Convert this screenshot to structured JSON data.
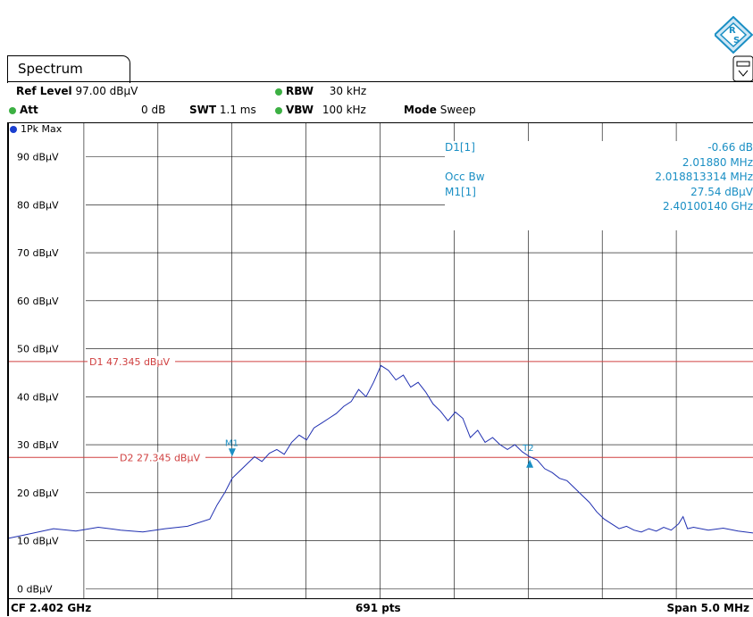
{
  "tab": {
    "label": "Spectrum"
  },
  "header": {
    "ref_level_label": "Ref Level",
    "ref_level_value": "97.00 dBµV",
    "att_label": "Att",
    "att_value": "0 dB",
    "swt_label": "SWT",
    "swt_value": "1.1 ms",
    "rbw_label": "RBW",
    "rbw_value": "30 kHz",
    "vbw_label": "VBW",
    "vbw_value": "100 kHz",
    "mode_label": "Mode",
    "mode_value": "Sweep"
  },
  "trace_label": "1Pk Max",
  "marker_table": {
    "rows": [
      {
        "label": "D1[1]",
        "value": "-0.66 dB"
      },
      {
        "label": "",
        "value": "2.01880 MHz"
      },
      {
        "label": "Occ Bw",
        "value": "2.018813314 MHz"
      },
      {
        "label": "M1[1]",
        "value": "27.54 dBµV"
      },
      {
        "label": "",
        "value": "2.40100140 GHz"
      }
    ]
  },
  "footer": {
    "cf": "CF 2.402 GHz",
    "pts": "691 pts",
    "span": "Span 5.0 MHz"
  },
  "colors": {
    "trace": "#1f2fb0",
    "limit_lines": "#d04040",
    "marker": "#1a8fc4",
    "grid": "#000000"
  },
  "chart_data": {
    "type": "line",
    "y_unit": "dBµV",
    "ylim": [
      -2,
      97
    ],
    "xlim": [
      2.3995,
      2.4045
    ],
    "y_ticks": [
      {
        "value": 90,
        "label": "90 dBµV"
      },
      {
        "value": 80,
        "label": "80 dBµV"
      },
      {
        "value": 70,
        "label": "70 dBµV"
      },
      {
        "value": 60,
        "label": "60 dBµV"
      },
      {
        "value": 50,
        "label": "50 dBµV"
      },
      {
        "value": 40,
        "label": "40 dBµV"
      },
      {
        "value": 30,
        "label": "30 dBµV"
      },
      {
        "value": 20,
        "label": "20 dBµV"
      },
      {
        "value": 10,
        "label": "10 dBµV"
      },
      {
        "value": 0,
        "label": "0 dBµV"
      }
    ],
    "grid": true,
    "reference_lines": [
      {
        "name": "D1",
        "label": "D1 47.345 dBµV",
        "value": 47.345
      },
      {
        "name": "D2",
        "label": "D2 27.345 dBµV",
        "value": 27.345
      }
    ],
    "markers": [
      {
        "label": "M1",
        "x": 2.401,
        "y": 27.54
      },
      {
        "label": "T2",
        "x": 2.403,
        "y": 26.88
      }
    ],
    "series": [
      {
        "points": [
          [
            2.3995,
            10.5
          ],
          [
            2.39965,
            11.5
          ],
          [
            2.3998,
            12.5
          ],
          [
            2.39995,
            12.0
          ],
          [
            2.4001,
            12.8
          ],
          [
            2.40025,
            12.2
          ],
          [
            2.4004,
            11.8
          ],
          [
            2.40055,
            12.5
          ],
          [
            2.4007,
            13.0
          ],
          [
            2.40085,
            14.5
          ],
          [
            2.4009,
            17.5
          ],
          [
            2.40095,
            20.0
          ],
          [
            2.401,
            23.0
          ],
          [
            2.40105,
            24.5
          ],
          [
            2.4011,
            26.0
          ],
          [
            2.40115,
            27.5
          ],
          [
            2.4012,
            26.5
          ],
          [
            2.40125,
            28.2
          ],
          [
            2.4013,
            29.0
          ],
          [
            2.40135,
            28.0
          ],
          [
            2.4014,
            30.5
          ],
          [
            2.40145,
            32.0
          ],
          [
            2.4015,
            31.0
          ],
          [
            2.40155,
            33.5
          ],
          [
            2.4016,
            34.5
          ],
          [
            2.40165,
            35.5
          ],
          [
            2.4017,
            36.5
          ],
          [
            2.40175,
            38.0
          ],
          [
            2.4018,
            39.0
          ],
          [
            2.40185,
            41.5
          ],
          [
            2.4019,
            40.0
          ],
          [
            2.40195,
            43.0
          ],
          [
            2.402,
            46.5
          ],
          [
            2.40205,
            45.5
          ],
          [
            2.4021,
            43.5
          ],
          [
            2.40215,
            44.5
          ],
          [
            2.4022,
            42.0
          ],
          [
            2.40225,
            43.0
          ],
          [
            2.4023,
            41.0
          ],
          [
            2.40235,
            38.5
          ],
          [
            2.4024,
            37.0
          ],
          [
            2.40245,
            35.0
          ],
          [
            2.4025,
            36.8
          ],
          [
            2.40255,
            35.5
          ],
          [
            2.4026,
            31.5
          ],
          [
            2.40265,
            33.0
          ],
          [
            2.4027,
            30.5
          ],
          [
            2.40275,
            31.5
          ],
          [
            2.4028,
            30.0
          ],
          [
            2.40285,
            29.0
          ],
          [
            2.4029,
            30.0
          ],
          [
            2.40295,
            28.5
          ],
          [
            2.403,
            27.5
          ],
          [
            2.40305,
            26.8
          ],
          [
            2.4031,
            25.0
          ],
          [
            2.40315,
            24.2
          ],
          [
            2.4032,
            23.0
          ],
          [
            2.40325,
            22.5
          ],
          [
            2.4033,
            21.0
          ],
          [
            2.40335,
            19.5
          ],
          [
            2.4034,
            18.0
          ],
          [
            2.40345,
            16.0
          ],
          [
            2.4035,
            14.5
          ],
          [
            2.40355,
            13.5
          ],
          [
            2.4036,
            12.5
          ],
          [
            2.40365,
            13.0
          ],
          [
            2.4037,
            12.2
          ],
          [
            2.40375,
            11.8
          ],
          [
            2.4038,
            12.5
          ],
          [
            2.40385,
            12.0
          ],
          [
            2.4039,
            12.8
          ],
          [
            2.40395,
            12.2
          ],
          [
            2.404,
            13.5
          ],
          [
            2.40403,
            15.0
          ],
          [
            2.40406,
            12.5
          ],
          [
            2.4041,
            12.8
          ],
          [
            2.4042,
            12.2
          ],
          [
            2.4043,
            12.6
          ],
          [
            2.4044,
            12.0
          ],
          [
            2.4045,
            11.6
          ]
        ]
      }
    ]
  }
}
